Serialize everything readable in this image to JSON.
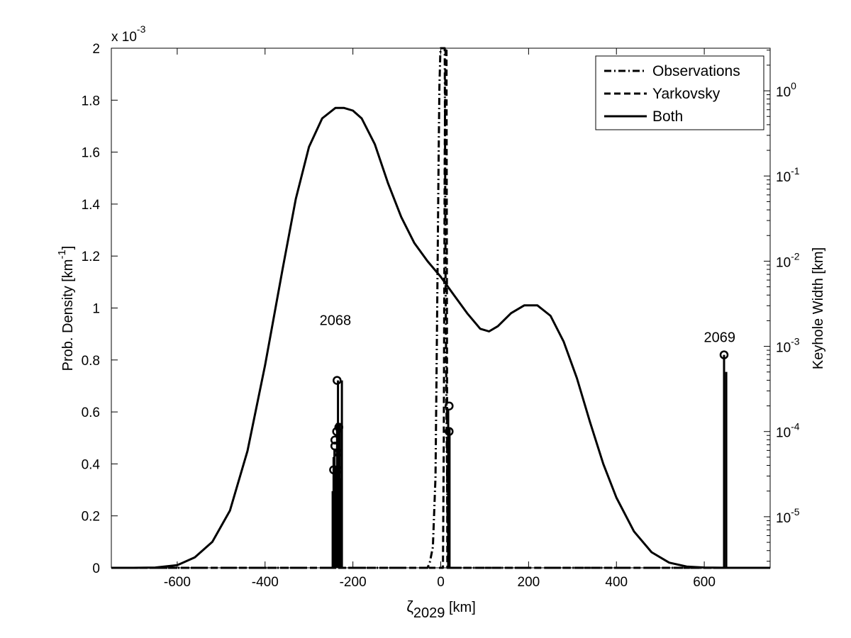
{
  "chart_data": {
    "type": "line",
    "xlabel_base": "ζ",
    "xlabel_sub": "2029",
    "xlabel_rest": " [km]",
    "ylabel_base": "Prob. Density [km",
    "ylabel_sup": "-1",
    "ylabel_end": "]",
    "y2label": "Keyhole Width [km]",
    "y_multiplier_base": "x 10",
    "y_multiplier_exp": "-3",
    "xlim": [
      -750,
      750
    ],
    "ylim": [
      0,
      2
    ],
    "y2_scale": "log",
    "y2lim_exponents": [
      -5.6,
      0.5
    ],
    "grid": false,
    "legend_position": "top-right",
    "x_ticks": [
      -600,
      -400,
      -200,
      0,
      200,
      400,
      600
    ],
    "x_tick_labels": [
      "-600",
      "-400",
      "-200",
      "0",
      "200",
      "400",
      "600"
    ],
    "y_ticks": [
      0,
      0.2,
      0.4,
      0.6,
      0.8,
      1,
      1.2,
      1.4,
      1.6,
      1.8,
      2
    ],
    "y_tick_labels": [
      "0",
      "0.2",
      "0.4",
      "0.6",
      "0.8",
      "1",
      "1.2",
      "1.4",
      "1.6",
      "1.8",
      "2"
    ],
    "y2_ticks": [
      {
        "exp": -5,
        "base": "10",
        "sup": "-5"
      },
      {
        "exp": -4,
        "base": "10",
        "sup": "-4"
      },
      {
        "exp": -3,
        "base": "10",
        "sup": "-3"
      },
      {
        "exp": -2,
        "base": "10",
        "sup": "-2"
      },
      {
        "exp": -1,
        "base": "10",
        "sup": "-1"
      },
      {
        "exp": 0,
        "base": "10",
        "sup": "0"
      }
    ],
    "series": [
      {
        "name": "Observations",
        "style": "dashdot",
        "x": [
          -750,
          -30,
          -25,
          -18,
          -12,
          -8,
          -5,
          -3,
          -1,
          0,
          3,
          6,
          9,
          11,
          13,
          15,
          17,
          750
        ],
        "y": [
          0,
          0,
          0.02,
          0.08,
          0.35,
          1.0,
          1.55,
          1.85,
          1.98,
          2.0,
          2.0,
          2.0,
          2.0,
          1.1,
          0.6,
          0.25,
          0,
          0
        ]
      },
      {
        "name": "Yarkovsky",
        "style": "dashed",
        "x": [
          -750,
          5,
          7,
          9,
          11,
          13,
          15,
          750
        ],
        "y": [
          0,
          0,
          0.5,
          1.6,
          2.0,
          2.0,
          0,
          0
        ]
      },
      {
        "name": "Both",
        "style": "solid",
        "x": [
          -750,
          -700,
          -650,
          -600,
          -560,
          -520,
          -480,
          -440,
          -400,
          -360,
          -330,
          -300,
          -270,
          -240,
          -220,
          -200,
          -180,
          -150,
          -120,
          -90,
          -60,
          -30,
          0,
          30,
          60,
          90,
          110,
          130,
          160,
          190,
          220,
          250,
          280,
          310,
          340,
          370,
          400,
          440,
          480,
          520,
          560,
          600,
          650,
          700,
          750
        ],
        "y": [
          0,
          0,
          0.001,
          0.01,
          0.04,
          0.1,
          0.22,
          0.45,
          0.78,
          1.15,
          1.42,
          1.62,
          1.73,
          1.77,
          1.77,
          1.76,
          1.73,
          1.63,
          1.48,
          1.35,
          1.25,
          1.18,
          1.12,
          1.05,
          0.98,
          0.92,
          0.91,
          0.93,
          0.98,
          1.01,
          1.01,
          0.97,
          0.87,
          0.73,
          0.56,
          0.4,
          0.27,
          0.14,
          0.06,
          0.02,
          0.005,
          0.001,
          0,
          0,
          0
        ]
      }
    ],
    "keyhole_stems": [
      {
        "x": -246,
        "exp": -4.7
      },
      {
        "x": -244,
        "exp": -4.3
      },
      {
        "x": -242,
        "exp": -4.2
      },
      {
        "x": -240,
        "exp": -4.4
      },
      {
        "x": -238,
        "exp": -4.7
      },
      {
        "x": -236,
        "exp": -3.9
      },
      {
        "x": -234,
        "exp": -3.4
      },
      {
        "x": -230,
        "exp": -3.9
      },
      {
        "x": -225,
        "exp": -3.4
      },
      {
        "x": -229,
        "exp": -4.55
      },
      {
        "x": 17,
        "exp": -3.75
      },
      {
        "x": 20,
        "exp": -3.95
      },
      {
        "x": 18,
        "exp": -4.6
      },
      {
        "x": 645,
        "exp": -3.1
      },
      {
        "x": 650,
        "exp": -3.3
      }
    ],
    "keyhole_markers": [
      {
        "x": -236,
        "exp": -3.4
      },
      {
        "x": -232,
        "exp": -3.95
      },
      {
        "x": -237,
        "exp": -4.0
      },
      {
        "x": -241,
        "exp": -4.1
      },
      {
        "x": -241,
        "exp": -4.17
      },
      {
        "x": -233,
        "exp": -4.25
      },
      {
        "x": -244,
        "exp": -4.45
      },
      {
        "x": -233,
        "exp": -4.45
      },
      {
        "x": 19,
        "exp": -3.7
      },
      {
        "x": 19,
        "exp": -4.0
      },
      {
        "x": 645,
        "exp": -3.1
      }
    ],
    "annotations": [
      {
        "text": "2068",
        "x": -240,
        "exp": -2.75
      },
      {
        "text": "2069",
        "x": 635,
        "exp": -2.95
      }
    ]
  }
}
